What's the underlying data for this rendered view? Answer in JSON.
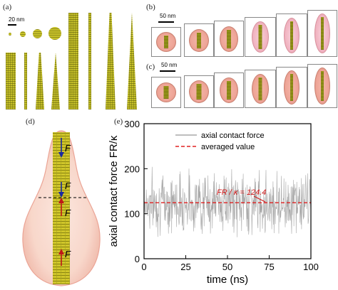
{
  "panels": {
    "a": {
      "label": "(a)",
      "scale": "20 nm"
    },
    "b": {
      "label": "(b)",
      "scale": "50 nm"
    },
    "c": {
      "label": "(c)",
      "scale": "50 nm"
    },
    "d": {
      "label": "(d)",
      "force_symbol": "F"
    },
    "e": {
      "label": "(e)"
    }
  },
  "colors": {
    "rod": "#c8c22a",
    "vesicle": "#eea597",
    "series": "#a8a8a8",
    "average": "#e02020",
    "force_down": "#1a2aa0",
    "force_up": "#c01818"
  },
  "chart_data": {
    "type": "line",
    "xlabel": "time (ns)",
    "ylabel": "axial contact force FR/κ",
    "xlim": [
      0,
      100
    ],
    "ylim": [
      0,
      300
    ],
    "xticks": [
      "0",
      "25",
      "50",
      "75",
      "100"
    ],
    "yticks": [
      "0",
      "100",
      "200",
      "300"
    ],
    "legend_position": "top-right",
    "annotation": "FR / κ = 124.4",
    "series": [
      {
        "name": "axial contact force",
        "style": "solid",
        "mean": 124.4,
        "spread": [
          20,
          245
        ]
      },
      {
        "name": "averaged value",
        "style": "dashed",
        "values": [
          124.4,
          124.4
        ],
        "x": [
          0,
          100
        ]
      }
    ]
  }
}
